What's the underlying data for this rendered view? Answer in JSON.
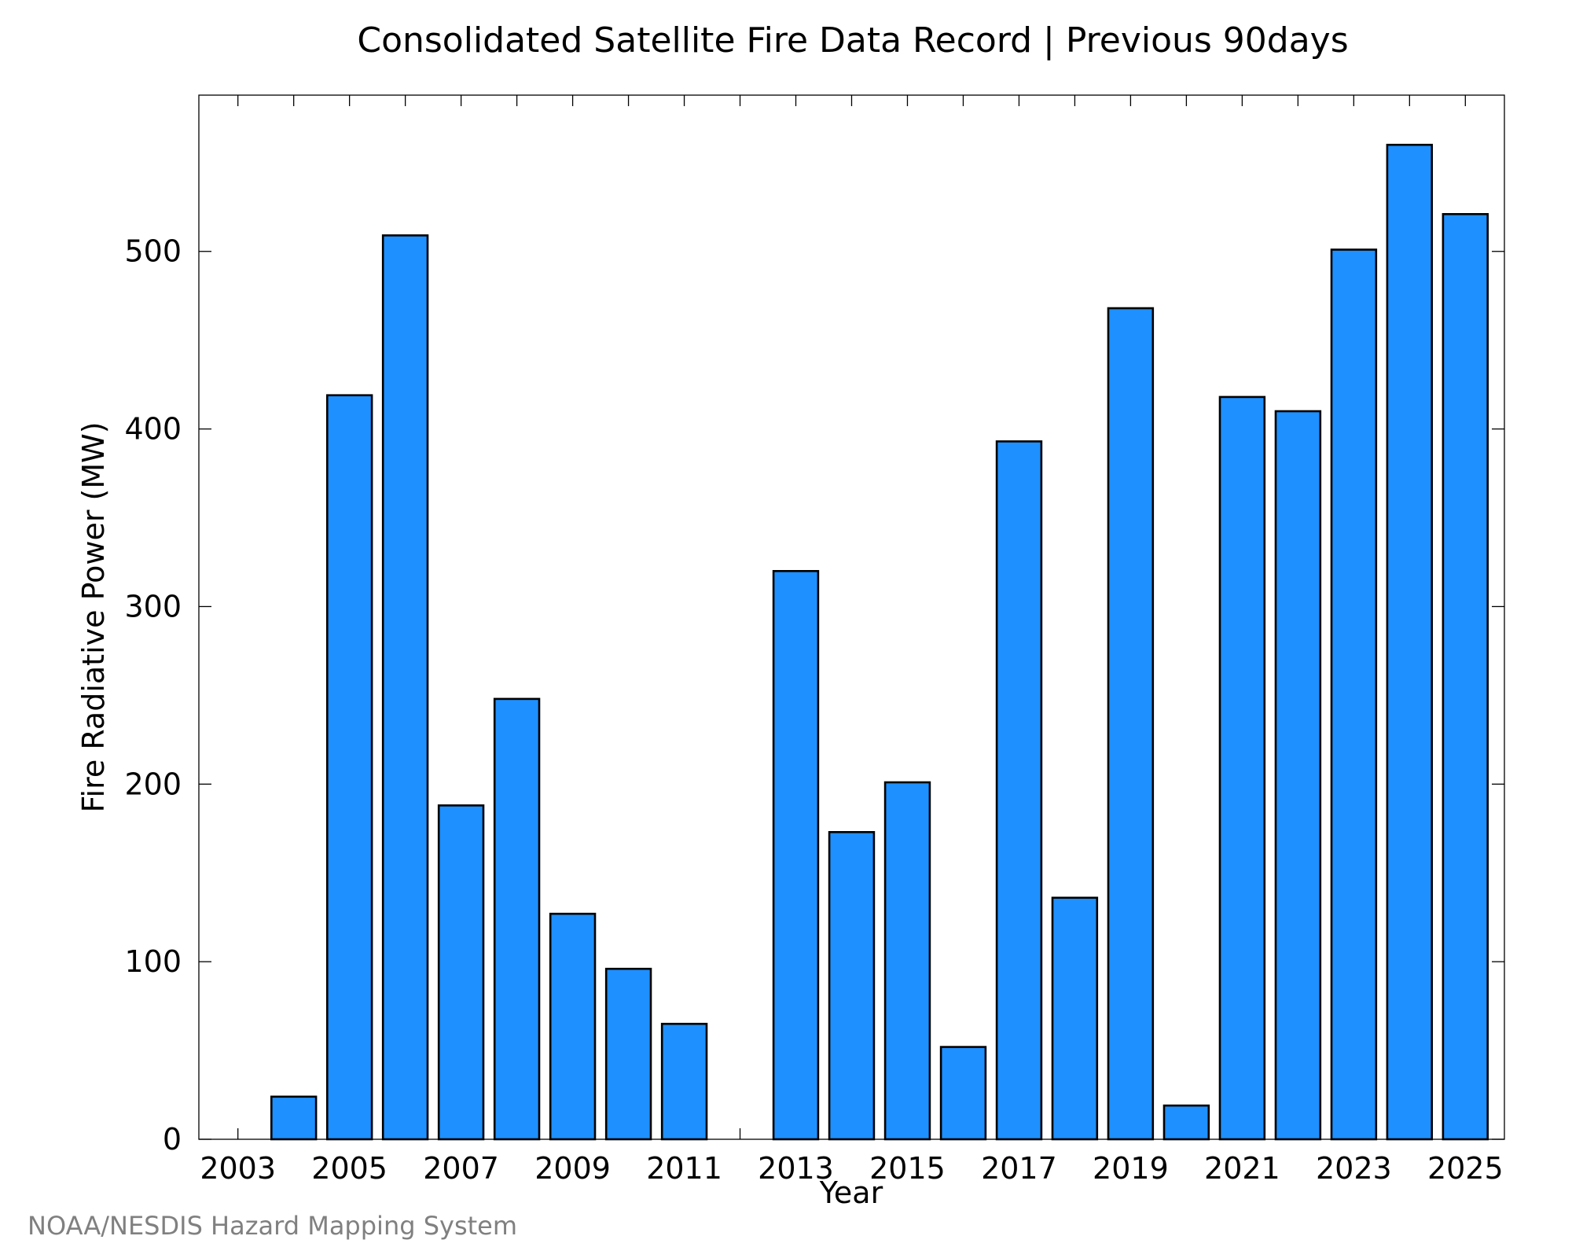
{
  "chart_data": {
    "type": "bar",
    "title": "Consolidated Satellite Fire Data Record | Previous 90days",
    "xlabel": "Year",
    "ylabel": "Fire Radiative Power (MW)",
    "credit": "NOAA/NESDIS Hazard Mapping System",
    "bar_color": "#1E90FF",
    "ylim": [
      0,
      588
    ],
    "yticks": [
      0,
      100,
      200,
      300,
      400,
      500
    ],
    "xlim": [
      2002.3,
      2025.7
    ],
    "xticks": [
      2003,
      2005,
      2007,
      2009,
      2011,
      2013,
      2015,
      2017,
      2019,
      2021,
      2023,
      2025
    ],
    "categories": [
      2003,
      2004,
      2005,
      2006,
      2007,
      2008,
      2009,
      2010,
      2011,
      2012,
      2013,
      2014,
      2015,
      2016,
      2017,
      2018,
      2019,
      2020,
      2021,
      2022,
      2023,
      2024,
      2025
    ],
    "values": [
      0,
      24,
      419,
      509,
      188,
      248,
      127,
      96,
      65,
      0,
      320,
      173,
      201,
      52,
      393,
      136,
      468,
      19,
      418,
      410,
      501,
      560,
      521
    ],
    "grid": false
  }
}
